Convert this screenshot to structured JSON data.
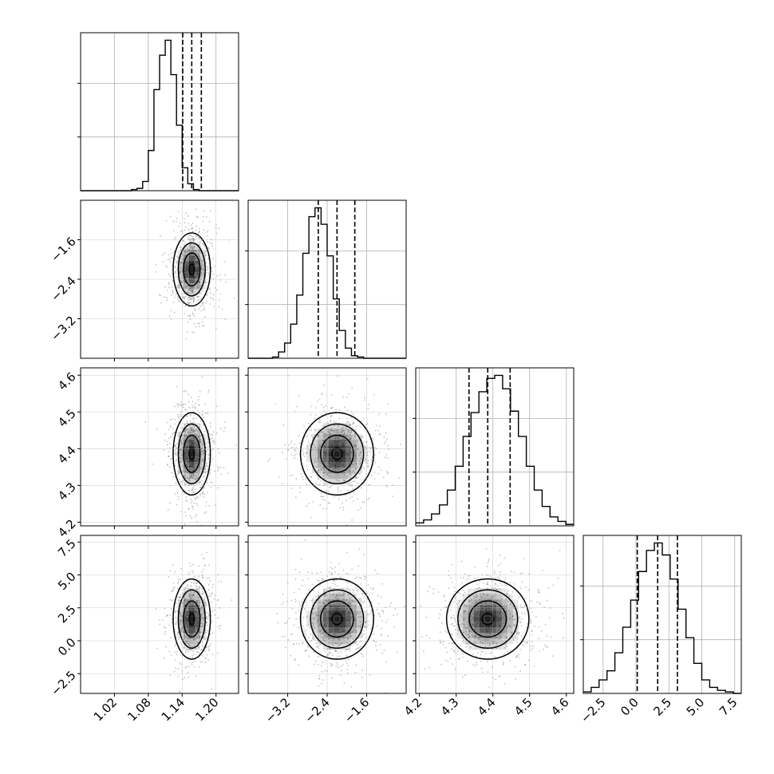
{
  "chart_data": {
    "type": "corner",
    "title": "",
    "parameters": [
      {
        "range": [
          0.96,
          1.24
        ],
        "ticks": [
          1.02,
          1.08,
          1.14,
          1.2
        ],
        "tick_labels": [
          "1.02",
          "1.08",
          "1.14",
          "1.20"
        ]
      },
      {
        "range": [
          -4.0,
          -0.8
        ],
        "ticks": [
          -3.2,
          -2.4,
          -1.6
        ],
        "tick_labels": [
          "−3.2",
          "−2.4",
          "−1.6"
        ]
      },
      {
        "range": [
          4.19,
          4.62
        ],
        "ticks": [
          4.2,
          4.3,
          4.4,
          4.5,
          4.6
        ],
        "tick_labels": [
          "4.2",
          "4.3",
          "4.4",
          "4.5",
          "4.6"
        ]
      },
      {
        "range": [
          -4.0,
          8.0
        ],
        "ticks": [
          -2.5,
          0.0,
          2.5,
          5.0,
          7.5
        ],
        "tick_labels": [
          "−2.5",
          "0.0",
          "2.5",
          "5.0",
          "7.5"
        ]
      }
    ],
    "histograms": [
      {
        "edges_range": [
          0.96,
          1.24
        ],
        "counts": [
          0,
          0,
          0,
          0,
          0,
          0,
          0,
          0,
          0,
          1,
          2,
          8,
          35,
          88,
          118,
          131,
          101,
          57,
          20,
          6,
          1,
          0,
          0,
          0,
          0,
          0,
          0,
          0
        ],
        "quantiles": [
          1.141,
          1.157,
          1.174
        ]
      },
      {
        "edges_range": [
          -4.0,
          -0.8
        ],
        "counts": [
          0,
          0,
          0,
          0,
          1,
          5,
          12,
          27,
          50,
          83,
          112,
          119,
          106,
          81,
          47,
          22,
          8,
          2,
          1,
          0,
          0,
          0,
          0,
          0,
          0,
          0
        ],
        "quantiles": [
          -2.58,
          -2.2,
          -1.84
        ]
      },
      {
        "edges_range": [
          4.19,
          4.62
        ],
        "counts": [
          2,
          4,
          8,
          14,
          24,
          40,
          60,
          76,
          90,
          99,
          101,
          92,
          77,
          60,
          40,
          24,
          13,
          6,
          3,
          1
        ],
        "quantiles": [
          4.335,
          4.386,
          4.447
        ]
      },
      {
        "edges_range": [
          -4.0,
          8.0
        ],
        "counts": [
          1,
          4,
          9,
          15,
          27,
          44,
          62,
          81,
          95,
          100,
          92,
          76,
          56,
          37,
          20,
          9,
          4,
          2,
          1,
          0
        ],
        "quantiles": [
          0.1,
          1.65,
          3.15
        ]
      }
    ],
    "grid": true,
    "colors": {
      "line": "#000000",
      "grid": "#b0b0b0",
      "points": "#7a7a7a",
      "density": "#000000",
      "background": "#ffffff"
    }
  }
}
